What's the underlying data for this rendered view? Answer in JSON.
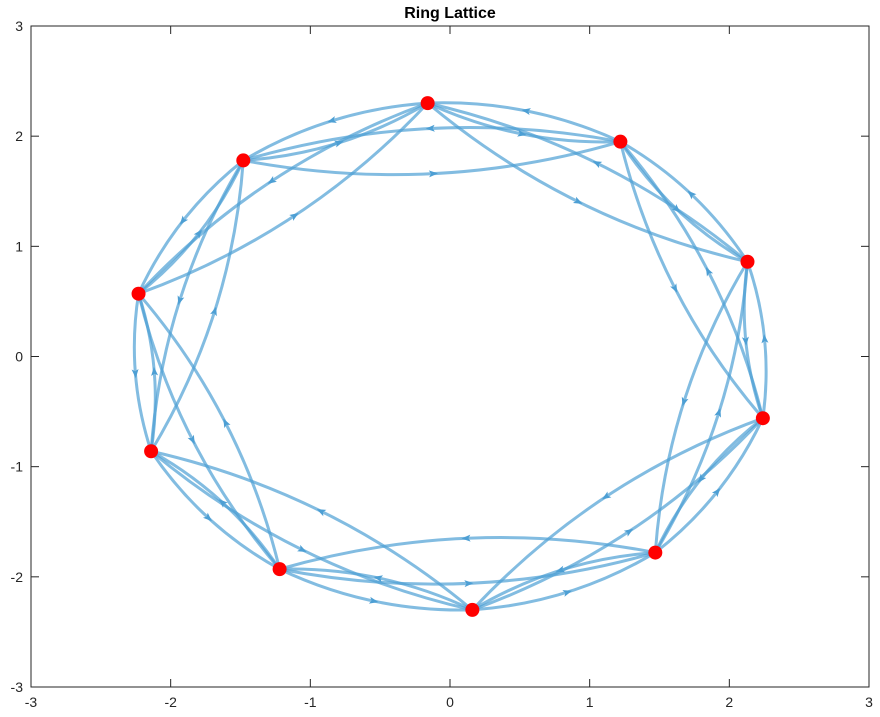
{
  "chart_data": {
    "type": "graph",
    "title": "Ring Lattice",
    "xlim": [
      -3,
      3
    ],
    "ylim": [
      -3,
      3
    ],
    "x_ticks": [
      -3,
      -2,
      -1,
      0,
      1,
      2,
      3
    ],
    "y_ticks": [
      -3,
      -2,
      -1,
      0,
      1,
      2,
      3
    ],
    "x_tick_labels": [
      "-3",
      "-2",
      "-1",
      "0",
      "1",
      "2",
      "3"
    ],
    "y_tick_labels": [
      "-3",
      "-2",
      "-1",
      "0",
      "1",
      "2",
      "3"
    ],
    "edge_color": "#4d9fd4",
    "node_color": "#ff0000",
    "directed": true,
    "nodes": [
      {
        "id": 1,
        "x": -0.16,
        "y": 2.3
      },
      {
        "id": 2,
        "x": 1.22,
        "y": 1.95
      },
      {
        "id": 3,
        "x": 2.13,
        "y": 0.86
      },
      {
        "id": 4,
        "x": 2.24,
        "y": -0.56
      },
      {
        "id": 5,
        "x": 1.47,
        "y": -1.78
      },
      {
        "id": 6,
        "x": 0.16,
        "y": -2.3
      },
      {
        "id": 7,
        "x": -1.22,
        "y": -1.93
      },
      {
        "id": 8,
        "x": -2.14,
        "y": -0.86
      },
      {
        "id": 9,
        "x": -2.23,
        "y": 0.57
      },
      {
        "id": 10,
        "x": -1.48,
        "y": 1.78
      }
    ],
    "edges": [
      [
        1,
        2
      ],
      [
        2,
        1
      ],
      [
        1,
        3
      ],
      [
        3,
        1
      ],
      [
        1,
        9
      ],
      [
        9,
        1
      ],
      [
        1,
        10
      ],
      [
        10,
        1
      ],
      [
        2,
        3
      ],
      [
        3,
        2
      ],
      [
        2,
        4
      ],
      [
        4,
        2
      ],
      [
        2,
        10
      ],
      [
        10,
        2
      ],
      [
        3,
        4
      ],
      [
        4,
        3
      ],
      [
        3,
        5
      ],
      [
        5,
        3
      ],
      [
        4,
        5
      ],
      [
        5,
        4
      ],
      [
        4,
        6
      ],
      [
        6,
        4
      ],
      [
        5,
        6
      ],
      [
        6,
        5
      ],
      [
        5,
        7
      ],
      [
        7,
        5
      ],
      [
        6,
        7
      ],
      [
        7,
        6
      ],
      [
        6,
        8
      ],
      [
        8,
        6
      ],
      [
        7,
        8
      ],
      [
        8,
        7
      ],
      [
        7,
        9
      ],
      [
        9,
        7
      ],
      [
        8,
        9
      ],
      [
        9,
        8
      ],
      [
        8,
        10
      ],
      [
        10,
        8
      ],
      [
        9,
        10
      ],
      [
        10,
        9
      ]
    ]
  }
}
